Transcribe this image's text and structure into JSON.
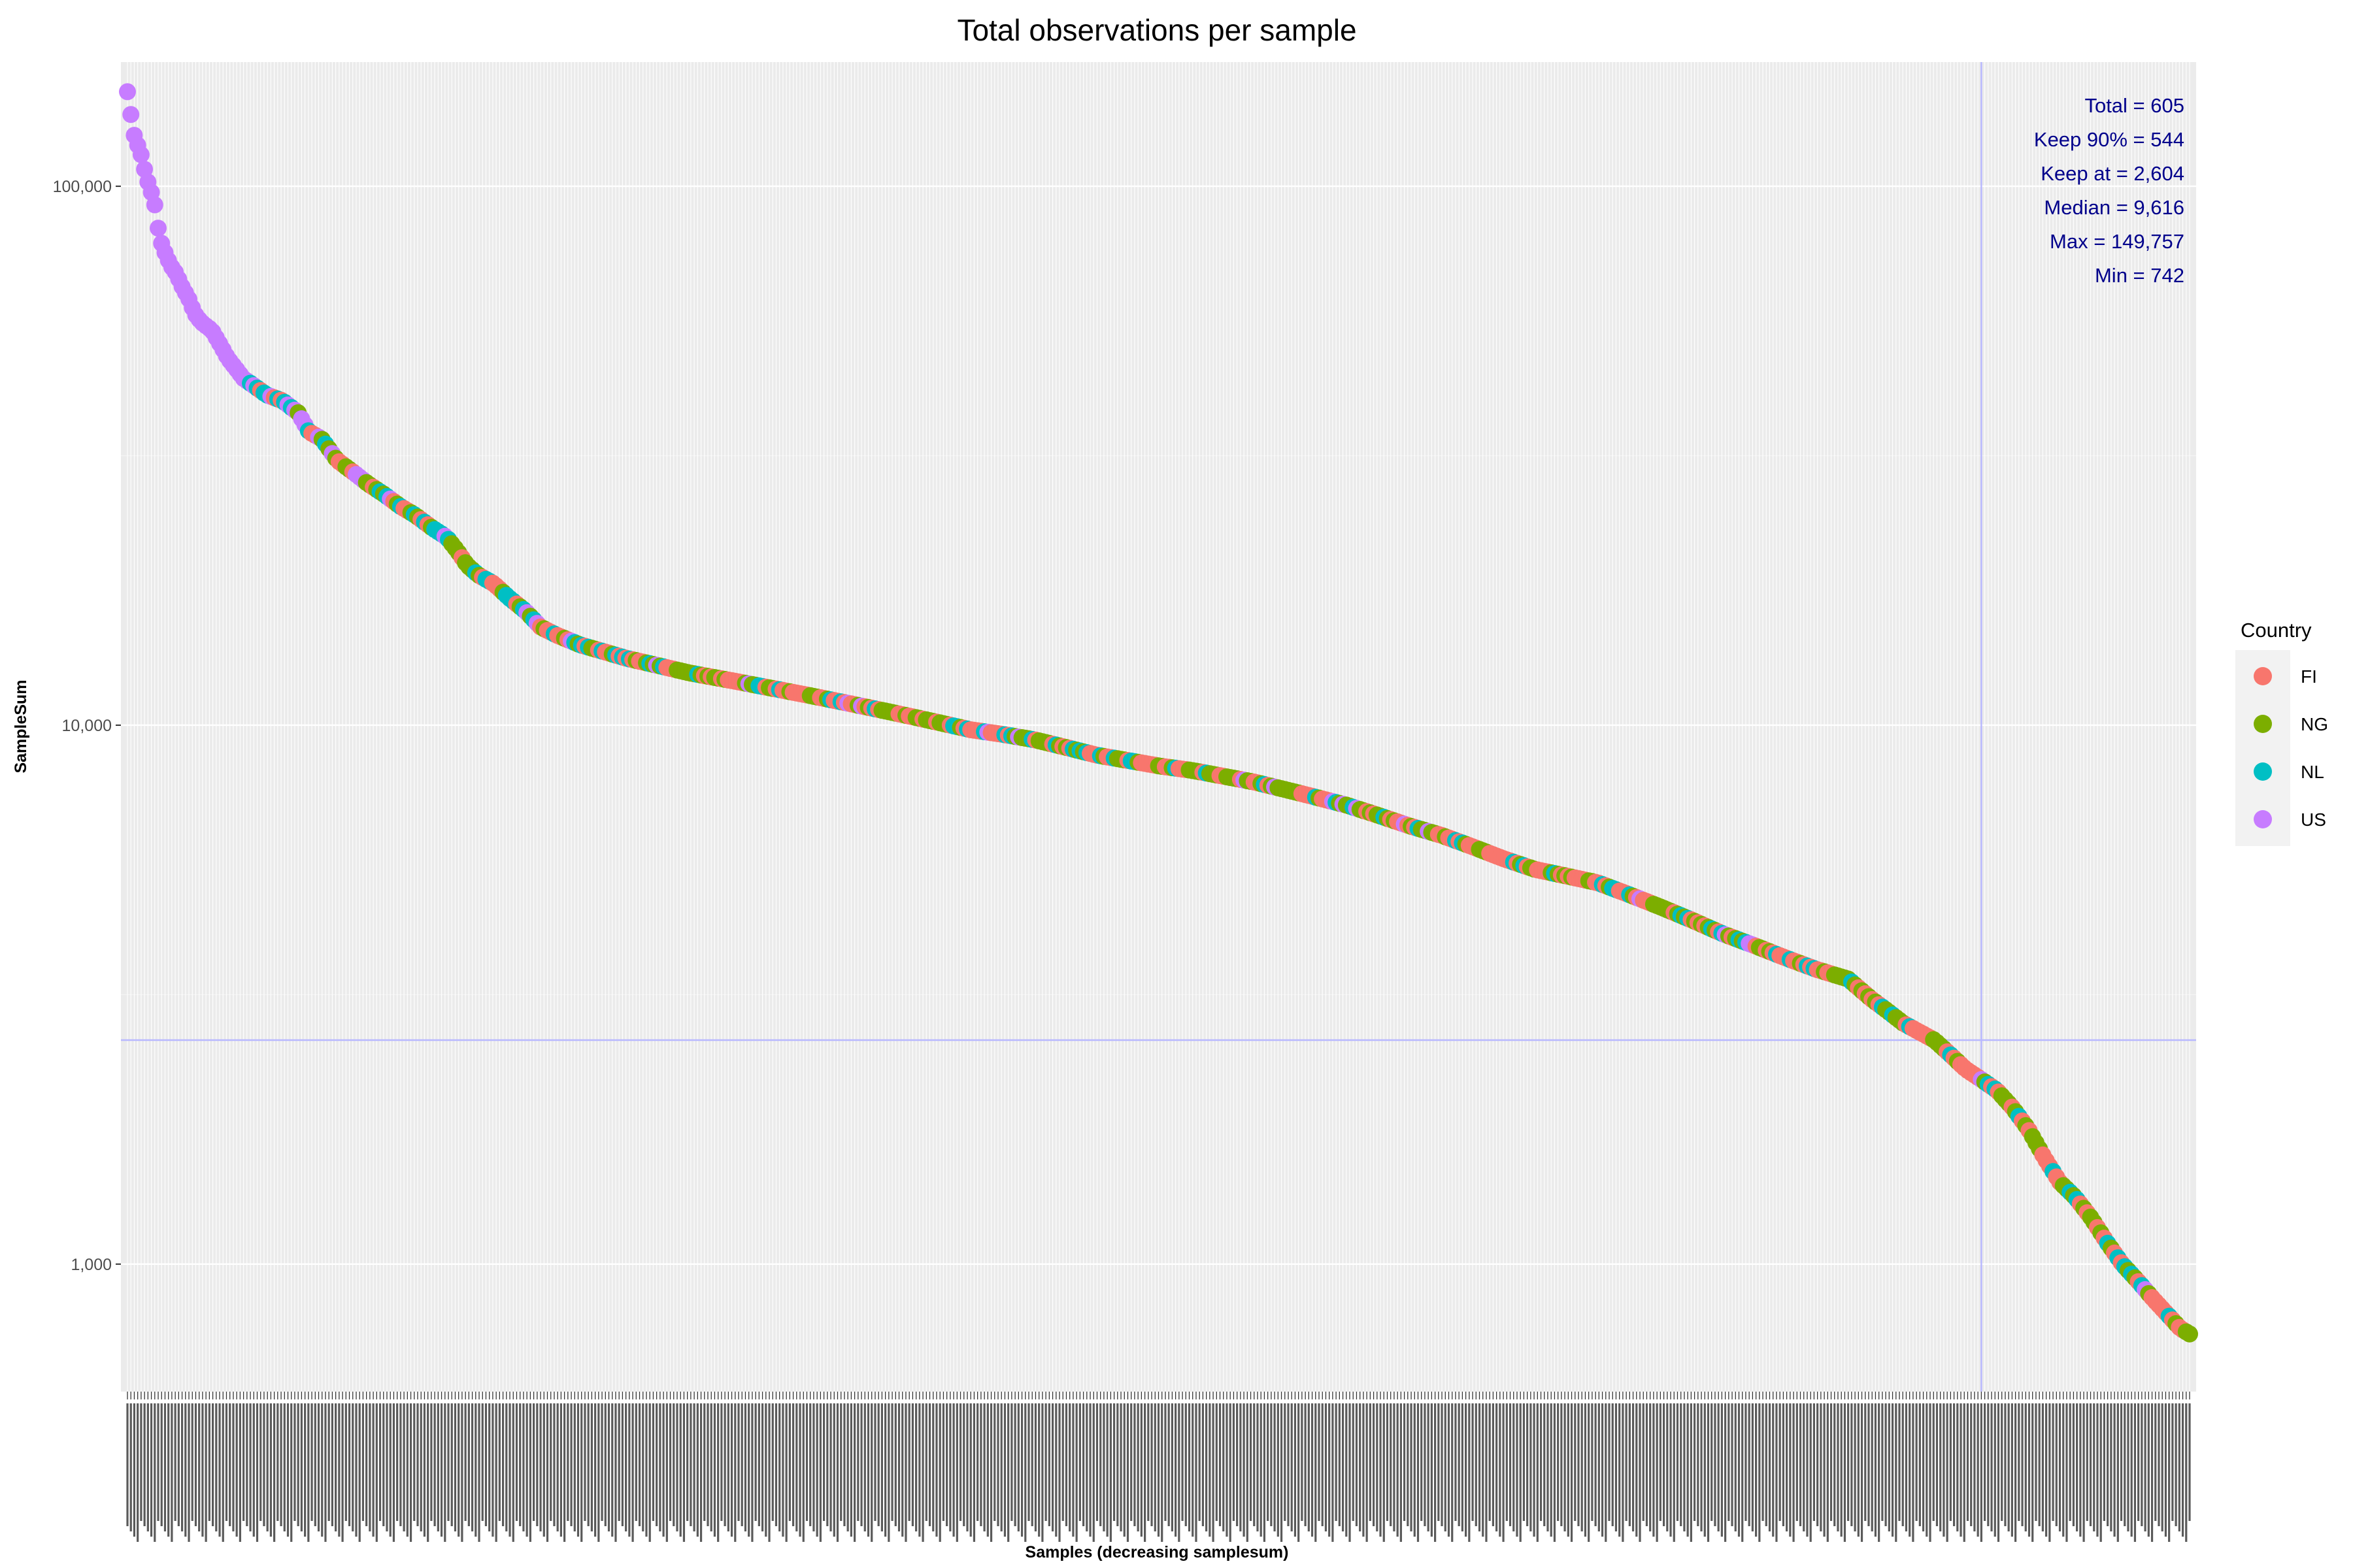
{
  "chart_data": {
    "type": "scatter",
    "title": "Total observations per sample",
    "xlabel": "Samples (decreasing samplesum)",
    "ylabel": "SampleSum",
    "y_scale": "log10",
    "ylim": [
      580,
      170000
    ],
    "y_ticks": [
      {
        "value": 1000,
        "label": "1,000"
      },
      {
        "value": 10000,
        "label": "10,000"
      },
      {
        "value": 100000,
        "label": "100,000"
      }
    ],
    "n_samples": 605,
    "x_tick_labels_legible": false,
    "keep_threshold": 2604,
    "keep_index": 544,
    "annotations": [
      "Total = 605",
      "Keep 90% = 544",
      "Keep at = 2,604",
      "Median = 9,616",
      "Max = 149,757",
      "Min = 742"
    ],
    "legend": {
      "title": "Country",
      "placement": "right",
      "entries": [
        {
          "label": "FI",
          "color": "#f8766d"
        },
        {
          "label": "NG",
          "color": "#7cae00"
        },
        {
          "label": "NL",
          "color": "#00bfc4"
        },
        {
          "label": "US",
          "color": "#c77cff"
        }
      ]
    },
    "curve_anchors": [
      [
        1,
        149757
      ],
      [
        2,
        148000
      ],
      [
        4,
        128000
      ],
      [
        7,
        120000
      ],
      [
        9,
        117000
      ],
      [
        11,
        110000
      ],
      [
        14,
        102000
      ],
      [
        17,
        96000
      ],
      [
        19,
        91000
      ],
      [
        21,
        82000
      ],
      [
        23,
        78000
      ],
      [
        26,
        74000
      ],
      [
        29,
        71000
      ],
      [
        32,
        69000
      ],
      [
        36,
        65000
      ],
      [
        40,
        62000
      ],
      [
        44,
        58000
      ],
      [
        48,
        56000
      ],
      [
        55,
        54000
      ],
      [
        60,
        51000
      ],
      [
        65,
        48000
      ],
      [
        70,
        46000
      ],
      [
        75,
        44000
      ],
      [
        80,
        43000
      ],
      [
        90,
        41000
      ],
      [
        100,
        40000
      ],
      [
        110,
        38000
      ],
      [
        117,
        35000
      ],
      [
        125,
        34000
      ],
      [
        135,
        31000
      ],
      [
        145,
        29500
      ],
      [
        155,
        28000
      ],
      [
        165,
        26800
      ],
      [
        175,
        25500
      ],
      [
        185,
        24500
      ],
      [
        195,
        23300
      ],
      [
        205,
        22300
      ],
      [
        212,
        21000
      ],
      [
        218,
        19800
      ],
      [
        225,
        19000
      ],
      [
        235,
        18300
      ],
      [
        245,
        17200
      ],
      [
        255,
        16300
      ],
      [
        265,
        15200
      ],
      [
        275,
        14700
      ],
      [
        290,
        14100
      ],
      [
        305,
        13700
      ],
      [
        320,
        13300
      ],
      [
        340,
        12900
      ],
      [
        360,
        12500
      ],
      [
        380,
        12200
      ],
      [
        400,
        11900
      ],
      [
        420,
        11600
      ],
      [
        440,
        11300
      ],
      [
        460,
        11000
      ],
      [
        480,
        10700
      ],
      [
        500,
        10400
      ],
      [
        520,
        10100
      ],
      [
        540,
        9800
      ],
      [
        560,
        9616
      ],
      [
        580,
        9400
      ],
      [
        600,
        9100
      ],
      [
        620,
        8800
      ],
      [
        640,
        8600
      ],
      [
        660,
        8400
      ],
      [
        680,
        8250
      ],
      [
        700,
        8050
      ],
      [
        720,
        7850
      ],
      [
        740,
        7600
      ],
      [
        760,
        7350
      ],
      [
        780,
        7100
      ],
      [
        800,
        6800
      ],
      [
        820,
        6500
      ],
      [
        840,
        6250
      ],
      [
        860,
        5950
      ],
      [
        880,
        5650
      ],
      [
        900,
        5400
      ],
      [
        920,
        5250
      ],
      [
        940,
        5100
      ],
      [
        960,
        4850
      ],
      [
        980,
        4600
      ],
      [
        1000,
        4350
      ],
      [
        1020,
        4100
      ],
      [
        1040,
        3900
      ],
      [
        1060,
        3700
      ],
      [
        1080,
        3520
      ],
      [
        1100,
        3380
      ],
      [
        1115,
        3100
      ],
      [
        1125,
        2950
      ],
      [
        1135,
        2800
      ],
      [
        1145,
        2700
      ],
      [
        1155,
        2604
      ],
      [
        1165,
        2450
      ],
      [
        1175,
        2300
      ],
      [
        1185,
        2200
      ],
      [
        1195,
        2100
      ],
      [
        1205,
        1950
      ],
      [
        1215,
        1780
      ],
      [
        1225,
        1580
      ],
      [
        1235,
        1420
      ],
      [
        1245,
        1330
      ],
      [
        1255,
        1220
      ],
      [
        1265,
        1100
      ],
      [
        1275,
        1000
      ],
      [
        1285,
        930
      ],
      [
        1295,
        860
      ],
      [
        1305,
        800
      ],
      [
        1312,
        760
      ],
      [
        1318,
        742
      ]
    ],
    "color_segments": [
      {
        "from": 1,
        "to": 38,
        "country": "US"
      },
      {
        "from": 39,
        "to": 70,
        "country": "mix-early"
      },
      {
        "from": 71,
        "to": 130,
        "country": "mix-early"
      },
      {
        "from": 131,
        "to": 210,
        "country": "mix-mid"
      },
      {
        "from": 211,
        "to": 1110,
        "country": "mix"
      },
      {
        "from": 1111,
        "to": 1130,
        "country": "mix-tail"
      },
      {
        "from": 1131,
        "to": 1318,
        "country": "mix-tail"
      }
    ]
  }
}
